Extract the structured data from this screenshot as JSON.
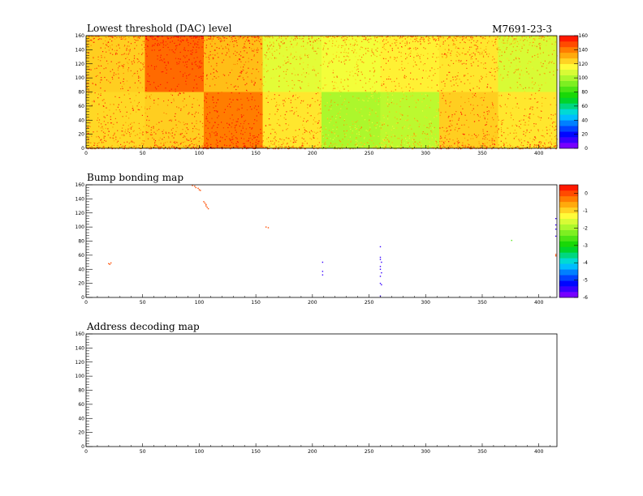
{
  "header": {
    "module_id": "M7691-23-3"
  },
  "chart_data": [
    {
      "type": "heatmap",
      "title": "Lowest threshold (DAC) level",
      "xlim": [
        0,
        416
      ],
      "ylim": [
        0,
        160
      ],
      "x_ticks": [
        0,
        50,
        100,
        150,
        200,
        250,
        300,
        350,
        400
      ],
      "y_ticks": [
        0,
        20,
        40,
        60,
        80,
        100,
        120,
        140,
        160
      ],
      "colorbar": {
        "min": 0,
        "max": 160,
        "ticks": [
          0,
          20,
          40,
          60,
          80,
          100,
          120,
          140,
          160
        ]
      },
      "grid": false,
      "legend": "colorbar-right",
      "cells": [
        {
          "x0": 0,
          "x1": 52,
          "y0": 80,
          "y1": 160,
          "value": 125
        },
        {
          "x0": 52,
          "x1": 104,
          "y0": 80,
          "y1": 160,
          "value": 143
        },
        {
          "x0": 104,
          "x1": 156,
          "y0": 80,
          "y1": 160,
          "value": 128
        },
        {
          "x0": 156,
          "x1": 208,
          "y0": 80,
          "y1": 160,
          "value": 110
        },
        {
          "x0": 208,
          "x1": 260,
          "y0": 80,
          "y1": 160,
          "value": 113
        },
        {
          "x0": 260,
          "x1": 312,
          "y0": 80,
          "y1": 160,
          "value": 118
        },
        {
          "x0": 312,
          "x1": 364,
          "y0": 80,
          "y1": 160,
          "value": 120
        },
        {
          "x0": 364,
          "x1": 416,
          "y0": 80,
          "y1": 160,
          "value": 108
        },
        {
          "x0": 0,
          "x1": 52,
          "y0": 0,
          "y1": 80,
          "value": 123
        },
        {
          "x0": 52,
          "x1": 104,
          "y0": 0,
          "y1": 80,
          "value": 125
        },
        {
          "x0": 104,
          "x1": 156,
          "y0": 0,
          "y1": 80,
          "value": 140
        },
        {
          "x0": 156,
          "x1": 208,
          "y0": 0,
          "y1": 80,
          "value": 120
        },
        {
          "x0": 208,
          "x1": 260,
          "y0": 0,
          "y1": 80,
          "value": 100
        },
        {
          "x0": 260,
          "x1": 312,
          "y0": 0,
          "y1": 80,
          "value": 103
        },
        {
          "x0": 312,
          "x1": 364,
          "y0": 0,
          "y1": 80,
          "value": 125
        },
        {
          "x0": 364,
          "x1": 416,
          "y0": 0,
          "y1": 80,
          "value": 120
        }
      ]
    },
    {
      "type": "scatter",
      "title": "Bump bonding map",
      "xlim": [
        0,
        416
      ],
      "ylim": [
        0,
        160
      ],
      "x_ticks": [
        0,
        50,
        100,
        150,
        200,
        250,
        300,
        350,
        400
      ],
      "y_ticks": [
        0,
        20,
        40,
        60,
        80,
        100,
        120,
        140,
        160
      ],
      "colorbar": {
        "min": -6,
        "max": 0.5,
        "ticks": [
          0,
          -1,
          -2,
          -3,
          -4,
          -5,
          -6
        ]
      },
      "grid": false,
      "legend": "colorbar-right",
      "points": [
        {
          "x": 94,
          "y": 159,
          "value": 0
        },
        {
          "x": 96,
          "y": 158,
          "value": 0
        },
        {
          "x": 97,
          "y": 156,
          "value": 0
        },
        {
          "x": 99,
          "y": 155,
          "value": 0
        },
        {
          "x": 100,
          "y": 153,
          "value": 0
        },
        {
          "x": 101,
          "y": 152,
          "value": 0
        },
        {
          "x": 104,
          "y": 136,
          "value": 0
        },
        {
          "x": 105,
          "y": 134,
          "value": 0
        },
        {
          "x": 106,
          "y": 132,
          "value": 0
        },
        {
          "x": 106,
          "y": 130,
          "value": 0
        },
        {
          "x": 107,
          "y": 128,
          "value": 0
        },
        {
          "x": 108,
          "y": 126,
          "value": 0
        },
        {
          "x": 159,
          "y": 100,
          "value": 0
        },
        {
          "x": 161,
          "y": 99,
          "value": 0
        },
        {
          "x": 20,
          "y": 48,
          "value": 0
        },
        {
          "x": 21,
          "y": 47,
          "value": 0
        },
        {
          "x": 22,
          "y": 49,
          "value": 0
        },
        {
          "x": 209,
          "y": 50,
          "value": -5.5
        },
        {
          "x": 209,
          "y": 37,
          "value": -5.5
        },
        {
          "x": 209,
          "y": 32,
          "value": -5.5
        },
        {
          "x": 260,
          "y": 72,
          "value": -5.5
        },
        {
          "x": 260,
          "y": 57,
          "value": -5.5
        },
        {
          "x": 260,
          "y": 54,
          "value": -5.5
        },
        {
          "x": 261,
          "y": 50,
          "value": -5.5
        },
        {
          "x": 260,
          "y": 44,
          "value": -5.5
        },
        {
          "x": 260,
          "y": 40,
          "value": -5.5
        },
        {
          "x": 261,
          "y": 35,
          "value": -5.5
        },
        {
          "x": 260,
          "y": 30,
          "value": -5.5
        },
        {
          "x": 260,
          "y": 20,
          "value": -5.5
        },
        {
          "x": 261,
          "y": 18,
          "value": -5.5
        },
        {
          "x": 260,
          "y": 2,
          "value": -5.5
        },
        {
          "x": 376,
          "y": 81,
          "value": -2.5
        },
        {
          "x": 415,
          "y": 112,
          "value": -5.5
        },
        {
          "x": 415,
          "y": 103,
          "value": -5.5
        },
        {
          "x": 415,
          "y": 97,
          "value": -5.5
        },
        {
          "x": 415,
          "y": 87,
          "value": -5.5
        },
        {
          "x": 415,
          "y": 61,
          "value": 0
        },
        {
          "x": 415,
          "y": 59,
          "value": 0
        }
      ]
    },
    {
      "type": "scatter",
      "title": "Address decoding map",
      "xlim": [
        0,
        416
      ],
      "ylim": [
        0,
        160
      ],
      "x_ticks": [
        0,
        50,
        100,
        150,
        200,
        250,
        300,
        350,
        400
      ],
      "y_ticks": [
        0,
        20,
        40,
        60,
        80,
        100,
        120,
        140,
        160
      ],
      "grid": false,
      "points": []
    }
  ]
}
